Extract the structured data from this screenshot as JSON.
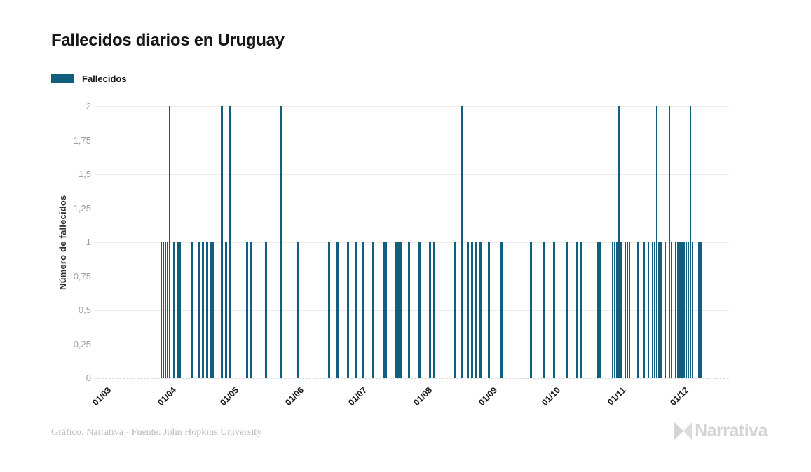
{
  "title": "Fallecidos diarios en Uruguay",
  "legend": {
    "label": "Fallecidos",
    "color": "#115e7e"
  },
  "y_axis": {
    "title": "Número de fallecidos",
    "ticks": [
      {
        "value": 2,
        "label": "2"
      },
      {
        "value": 1.75,
        "label": "1,75"
      },
      {
        "value": 1.5,
        "label": "1,5"
      },
      {
        "value": 1.25,
        "label": "1,25"
      },
      {
        "value": 1,
        "label": "1"
      },
      {
        "value": 0.75,
        "label": "0,75"
      },
      {
        "value": 0.5,
        "label": "0,5"
      },
      {
        "value": 0.25,
        "label": "0,25"
      },
      {
        "value": 0,
        "label": "0"
      }
    ]
  },
  "x_axis": {
    "ticks": [
      {
        "date": "2020-03-01",
        "label": "01/03"
      },
      {
        "date": "2020-04-01",
        "label": "01/04"
      },
      {
        "date": "2020-05-01",
        "label": "01/05"
      },
      {
        "date": "2020-06-01",
        "label": "01/06"
      },
      {
        "date": "2020-07-01",
        "label": "01/07"
      },
      {
        "date": "2020-08-01",
        "label": "01/08"
      },
      {
        "date": "2020-09-01",
        "label": "01/09"
      },
      {
        "date": "2020-10-01",
        "label": "01/10"
      },
      {
        "date": "2020-11-01",
        "label": "01/11"
      },
      {
        "date": "2020-12-01",
        "label": "01/12"
      }
    ]
  },
  "footer": {
    "credit": "Gráfico: Narrativa - Fuente: John Hopkins University",
    "brand": "Narrativa"
  },
  "chart_data": {
    "type": "bar",
    "title": "Fallecidos diarios en Uruguay",
    "xlabel": "",
    "ylabel": "Número de fallecidos",
    "ylim": [
      0,
      2
    ],
    "x_domain": [
      "2020-03-01",
      "2020-12-26"
    ],
    "grid": true,
    "legend_entries": [
      "Fallecidos"
    ],
    "legend_position": "top-left",
    "bar_color": "#115e7e",
    "points": [
      {
        "date": "2020-03-30",
        "value": 1
      },
      {
        "date": "2020-03-31",
        "value": 1
      },
      {
        "date": "2020-04-01",
        "value": 1
      },
      {
        "date": "2020-04-02",
        "value": 1
      },
      {
        "date": "2020-04-03",
        "value": 2
      },
      {
        "date": "2020-04-05",
        "value": 1
      },
      {
        "date": "2020-04-07",
        "value": 1
      },
      {
        "date": "2020-04-08",
        "value": 1
      },
      {
        "date": "2020-04-14",
        "value": 1
      },
      {
        "date": "2020-04-17",
        "value": 1
      },
      {
        "date": "2020-04-19",
        "value": 1
      },
      {
        "date": "2020-04-21",
        "value": 1
      },
      {
        "date": "2020-04-23",
        "value": 1
      },
      {
        "date": "2020-04-24",
        "value": 1
      },
      {
        "date": "2020-04-28",
        "value": 2
      },
      {
        "date": "2020-04-30",
        "value": 1
      },
      {
        "date": "2020-05-02",
        "value": 2
      },
      {
        "date": "2020-05-10",
        "value": 1
      },
      {
        "date": "2020-05-12",
        "value": 1
      },
      {
        "date": "2020-05-19",
        "value": 1
      },
      {
        "date": "2020-05-26",
        "value": 2
      },
      {
        "date": "2020-06-03",
        "value": 1
      },
      {
        "date": "2020-06-18",
        "value": 1
      },
      {
        "date": "2020-06-22",
        "value": 1
      },
      {
        "date": "2020-06-27",
        "value": 1
      },
      {
        "date": "2020-07-01",
        "value": 1
      },
      {
        "date": "2020-07-04",
        "value": 1
      },
      {
        "date": "2020-07-09",
        "value": 1
      },
      {
        "date": "2020-07-14",
        "value": 1
      },
      {
        "date": "2020-07-15",
        "value": 1
      },
      {
        "date": "2020-07-20",
        "value": 1
      },
      {
        "date": "2020-07-21",
        "value": 1
      },
      {
        "date": "2020-07-22",
        "value": 1
      },
      {
        "date": "2020-07-26",
        "value": 1
      },
      {
        "date": "2020-07-31",
        "value": 1
      },
      {
        "date": "2020-08-05",
        "value": 1
      },
      {
        "date": "2020-08-07",
        "value": 1
      },
      {
        "date": "2020-08-17",
        "value": 1
      },
      {
        "date": "2020-08-20",
        "value": 2
      },
      {
        "date": "2020-08-23",
        "value": 1
      },
      {
        "date": "2020-08-25",
        "value": 1
      },
      {
        "date": "2020-08-27",
        "value": 1
      },
      {
        "date": "2020-08-29",
        "value": 1
      },
      {
        "date": "2020-09-02",
        "value": 1
      },
      {
        "date": "2020-09-08",
        "value": 1
      },
      {
        "date": "2020-09-22",
        "value": 1
      },
      {
        "date": "2020-09-28",
        "value": 1
      },
      {
        "date": "2020-10-03",
        "value": 1
      },
      {
        "date": "2020-10-09",
        "value": 1
      },
      {
        "date": "2020-10-14",
        "value": 1
      },
      {
        "date": "2020-10-16",
        "value": 1
      },
      {
        "date": "2020-10-24",
        "value": 1
      },
      {
        "date": "2020-10-25",
        "value": 1
      },
      {
        "date": "2020-10-31",
        "value": 1
      },
      {
        "date": "2020-11-01",
        "value": 1
      },
      {
        "date": "2020-11-02",
        "value": 1
      },
      {
        "date": "2020-11-03",
        "value": 2
      },
      {
        "date": "2020-11-04",
        "value": 1
      },
      {
        "date": "2020-11-06",
        "value": 1
      },
      {
        "date": "2020-11-07",
        "value": 1
      },
      {
        "date": "2020-11-08",
        "value": 1
      },
      {
        "date": "2020-11-12",
        "value": 1
      },
      {
        "date": "2020-11-15",
        "value": 1
      },
      {
        "date": "2020-11-17",
        "value": 1
      },
      {
        "date": "2020-11-19",
        "value": 1
      },
      {
        "date": "2020-11-20",
        "value": 1
      },
      {
        "date": "2020-11-21",
        "value": 2
      },
      {
        "date": "2020-11-22",
        "value": 1
      },
      {
        "date": "2020-11-23",
        "value": 1
      },
      {
        "date": "2020-11-25",
        "value": 1
      },
      {
        "date": "2020-11-27",
        "value": 2
      },
      {
        "date": "2020-11-28",
        "value": 1
      },
      {
        "date": "2020-11-30",
        "value": 1
      },
      {
        "date": "2020-12-01",
        "value": 1
      },
      {
        "date": "2020-12-02",
        "value": 1
      },
      {
        "date": "2020-12-03",
        "value": 1
      },
      {
        "date": "2020-12-04",
        "value": 1
      },
      {
        "date": "2020-12-05",
        "value": 1
      },
      {
        "date": "2020-12-06",
        "value": 1
      },
      {
        "date": "2020-12-07",
        "value": 2
      },
      {
        "date": "2020-12-08",
        "value": 1
      },
      {
        "date": "2020-12-11",
        "value": 1
      },
      {
        "date": "2020-12-12",
        "value": 1
      }
    ]
  }
}
